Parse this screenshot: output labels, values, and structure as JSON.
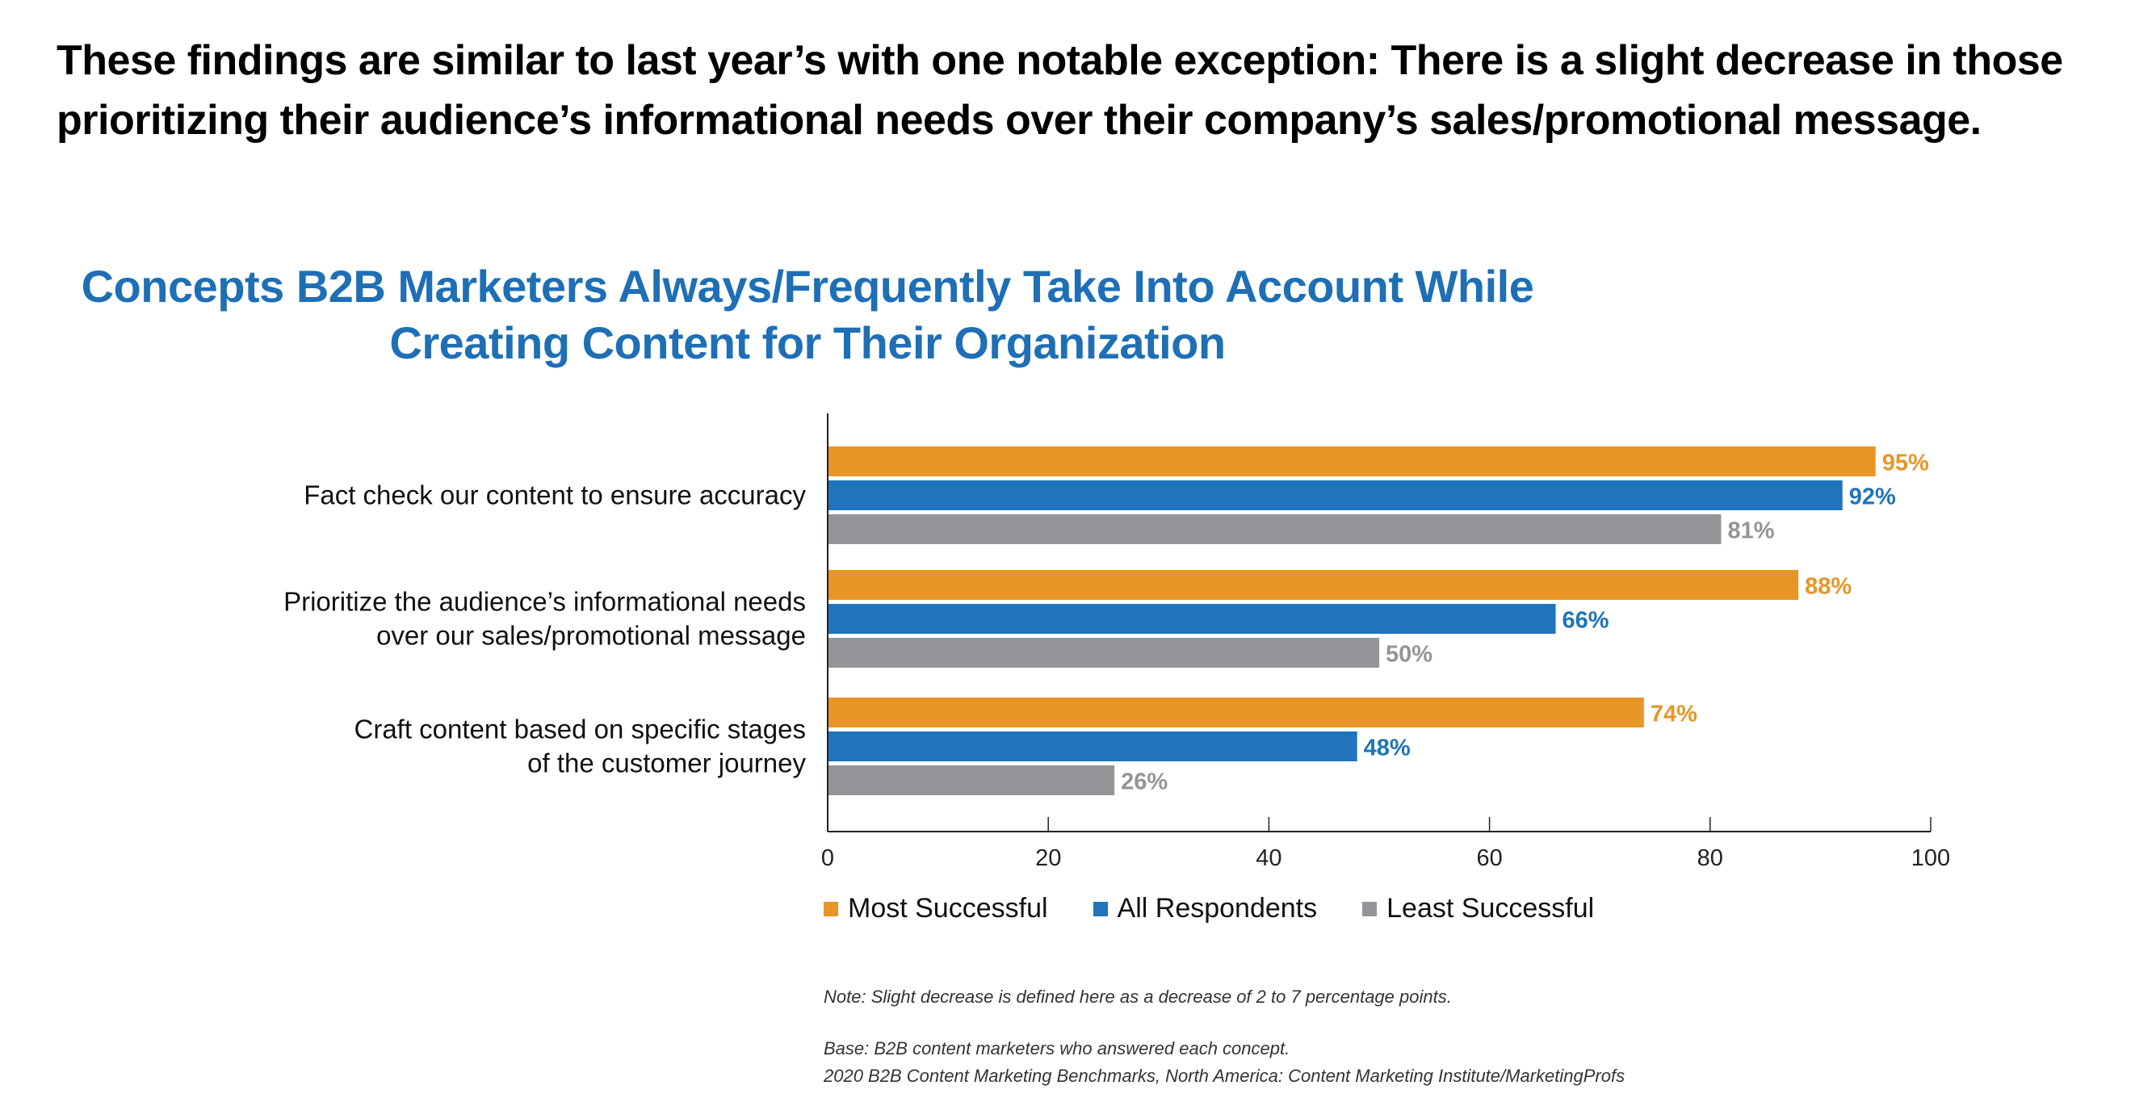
{
  "headline": {
    "line1": "These findings are similar to last year’s with one notable exception: There is a slight decrease in those",
    "line2": "prioritizing their audience’s informational needs over their company’s sales/promotional message."
  },
  "colors": {
    "title": "#1E6FB5",
    "most_successful": "#E89526",
    "all_respondents": "#1F74BB",
    "least_successful": "#939598",
    "axis": "#222222"
  },
  "chart_data": {
    "type": "bar",
    "orientation": "horizontal",
    "title": "Concepts B2B Marketers Always/Frequently Take Into Account While Creating Content for Their Organization",
    "title_lines": [
      "Concepts B2B Marketers Always/Frequently Take Into Account While",
      "Creating Content for Their Organization"
    ],
    "categories": [
      [
        "Fact check our content to ensure accuracy"
      ],
      [
        "Prioritize the audience’s informational needs",
        "over our sales/promotional message"
      ],
      [
        "Craft content based on specific stages",
        "of the customer journey"
      ]
    ],
    "series": [
      {
        "name": "Most Successful",
        "color": "#E89526",
        "values": [
          95,
          88,
          74
        ],
        "labels": [
          "95%",
          "88%",
          "74%"
        ]
      },
      {
        "name": "All Respondents",
        "color": "#1F74BB",
        "values": [
          92,
          66,
          48
        ],
        "labels": [
          "92%",
          "66%",
          "48%"
        ]
      },
      {
        "name": "Least Successful",
        "color": "#939598",
        "values": [
          81,
          50,
          26
        ],
        "labels": [
          "81%",
          "50%",
          "26%"
        ]
      }
    ],
    "xlim": [
      0,
      100
    ],
    "xticks": [
      0,
      20,
      40,
      60,
      80,
      100
    ],
    "xlabel": "",
    "ylabel": "",
    "grid": false,
    "legend_position": "bottom"
  },
  "legend": [
    {
      "label": "Most Successful",
      "color": "#E89526"
    },
    {
      "label": "All Respondents",
      "color": "#1F74BB"
    },
    {
      "label": "Least Successful",
      "color": "#939598"
    }
  ],
  "notes": {
    "note": "Note: Slight decrease is defined here as a decrease of 2 to 7 percentage points.",
    "base": "Base: B2B content marketers who answered each concept.",
    "source": "2020 B2B Content Marketing Benchmarks, North America: Content Marketing Institute/MarketingProfs"
  }
}
